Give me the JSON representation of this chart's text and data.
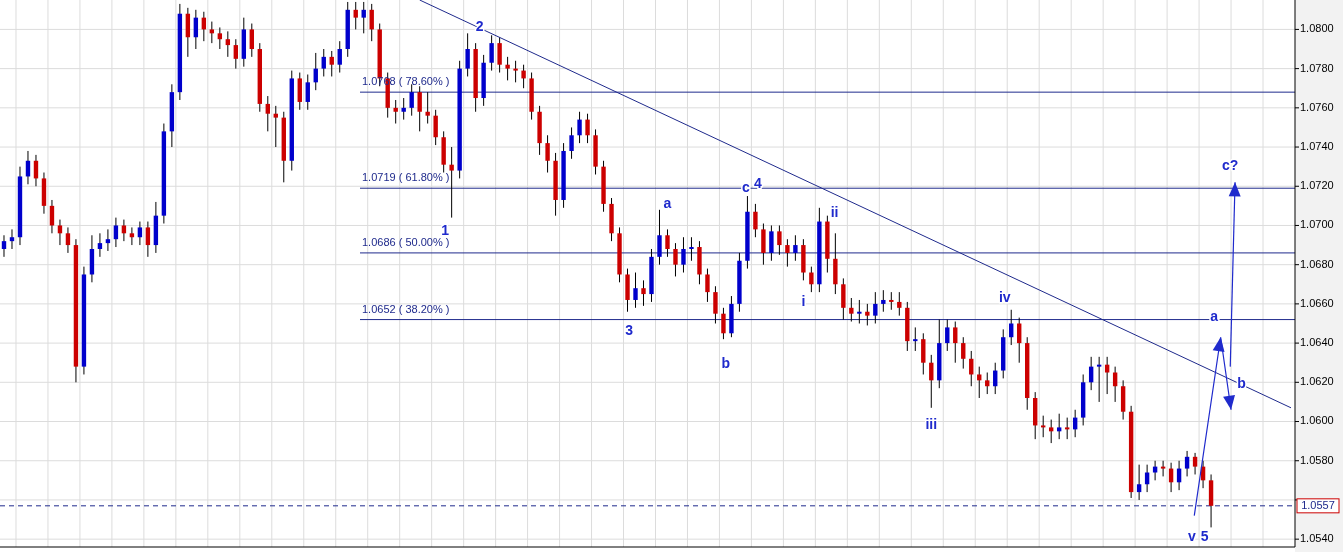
{
  "chart_data": {
    "type": "candlestick",
    "categories": [
      null,
      null,
      null,
      null,
      null,
      null,
      null,
      null,
      null,
      null,
      null,
      null,
      null,
      null,
      null,
      null,
      null,
      null,
      null,
      null,
      null,
      null,
      null,
      null,
      null,
      null,
      null,
      null,
      null,
      null,
      null,
      null,
      null,
      null,
      null,
      null,
      null,
      null,
      null,
      null,
      null,
      null,
      null,
      null,
      null,
      null,
      null,
      null,
      null,
      null,
      null,
      null,
      null,
      null,
      null,
      null,
      null,
      null,
      null,
      null,
      null,
      null,
      null,
      null,
      null,
      null,
      null,
      null,
      null,
      null,
      null,
      null,
      null,
      null,
      null,
      null,
      null,
      null,
      null,
      null,
      null,
      null,
      null,
      null,
      null,
      null,
      null,
      null,
      null,
      null,
      null,
      null,
      null,
      null,
      null,
      null,
      null,
      null,
      null,
      null,
      null,
      null,
      null,
      null,
      null,
      null,
      null,
      null,
      null,
      null,
      null,
      null,
      null,
      null,
      null,
      null,
      null,
      null,
      null,
      null,
      null,
      null,
      null,
      null,
      null,
      null,
      null,
      null,
      null,
      null,
      null,
      null,
      null,
      null,
      null,
      null,
      null,
      null,
      null,
      null,
      null,
      null,
      null,
      null,
      null,
      null,
      null,
      null,
      null,
      null,
      null,
      null,
      null,
      null,
      null,
      null,
      null,
      null,
      null,
      null,
      null,
      null
    ],
    "ohlc": [
      [
        1.0688,
        1.0695,
        1.0684,
        1.0692
      ],
      [
        1.0692,
        1.0698,
        1.0688,
        1.0694
      ],
      [
        1.0694,
        1.073,
        1.069,
        1.0725
      ],
      [
        1.0725,
        1.0738,
        1.0721,
        1.0733
      ],
      [
        1.0733,
        1.0736,
        1.072,
        1.0724
      ],
      [
        1.0724,
        1.0727,
        1.0706,
        1.071
      ],
      [
        1.071,
        1.0713,
        1.0696,
        1.07
      ],
      [
        1.07,
        1.0703,
        1.069,
        1.0696
      ],
      [
        1.0696,
        1.0699,
        1.0686,
        1.069
      ],
      [
        1.069,
        1.0693,
        1.062,
        1.0628
      ],
      [
        1.0628,
        1.0679,
        1.0624,
        1.0675
      ],
      [
        1.0675,
        1.0695,
        1.0671,
        1.0688
      ],
      [
        1.0688,
        1.0696,
        1.0684,
        1.0691
      ],
      [
        1.0691,
        1.0698,
        1.0687,
        1.0693
      ],
      [
        1.0693,
        1.0704,
        1.0689,
        1.07
      ],
      [
        1.07,
        1.0703,
        1.0692,
        1.0696
      ],
      [
        1.0696,
        1.0699,
        1.069,
        1.0694
      ],
      [
        1.0694,
        1.0702,
        1.069,
        1.0699
      ],
      [
        1.0699,
        1.0702,
        1.0684,
        1.069
      ],
      [
        1.069,
        1.0712,
        1.0686,
        1.0705
      ],
      [
        1.0705,
        1.0752,
        1.0701,
        1.0748
      ],
      [
        1.0748,
        1.0772,
        1.074,
        1.0768
      ],
      [
        1.0768,
        1.0813,
        1.0764,
        1.0808
      ],
      [
        1.0808,
        1.0811,
        1.0786,
        1.0796
      ],
      [
        1.0796,
        1.081,
        1.079,
        1.0806
      ],
      [
        1.0806,
        1.0809,
        1.0794,
        1.08
      ],
      [
        1.08,
        1.0804,
        1.0793,
        1.0798
      ],
      [
        1.0798,
        1.0801,
        1.079,
        1.0795
      ],
      [
        1.0795,
        1.0799,
        1.0786,
        1.0792
      ],
      [
        1.0792,
        1.0795,
        1.078,
        1.0785
      ],
      [
        1.0785,
        1.0806,
        1.0781,
        1.08
      ],
      [
        1.08,
        1.0803,
        1.0786,
        1.079
      ],
      [
        1.079,
        1.0793,
        1.0758,
        1.0762
      ],
      [
        1.0762,
        1.0766,
        1.0748,
        1.0757
      ],
      [
        1.0757,
        1.0761,
        1.074,
        1.0755
      ],
      [
        1.0755,
        1.0758,
        1.0722,
        1.0733
      ],
      [
        1.0733,
        1.0779,
        1.0728,
        1.0775
      ],
      [
        1.0775,
        1.0778,
        1.0759,
        1.0763
      ],
      [
        1.0763,
        1.0777,
        1.0759,
        1.0773
      ],
      [
        1.0773,
        1.0788,
        1.0769,
        1.078
      ],
      [
        1.078,
        1.079,
        1.0776,
        1.0786
      ],
      [
        1.0786,
        1.0789,
        1.0776,
        1.0782
      ],
      [
        1.0782,
        1.0794,
        1.0778,
        1.079
      ],
      [
        1.079,
        1.0814,
        1.0786,
        1.081
      ],
      [
        1.081,
        1.0814,
        1.08,
        1.0806
      ],
      [
        1.0806,
        1.0814,
        1.0798,
        1.081
      ],
      [
        1.081,
        1.0813,
        1.0794,
        1.08
      ],
      [
        1.08,
        1.0803,
        1.0771,
        1.0775
      ],
      [
        1.0775,
        1.0778,
        1.0755,
        1.076
      ],
      [
        1.076,
        1.0764,
        1.0752,
        1.0758
      ],
      [
        1.0758,
        1.0765,
        1.0754,
        1.076
      ],
      [
        1.076,
        1.0772,
        1.0756,
        1.0768
      ],
      [
        1.0768,
        1.0771,
        1.0748,
        1.0758
      ],
      [
        1.0758,
        1.0768,
        1.0752,
        1.0756
      ],
      [
        1.0756,
        1.0759,
        1.0741,
        1.0745
      ],
      [
        1.0745,
        1.0748,
        1.0727,
        1.0731
      ],
      [
        1.0731,
        1.074,
        1.0704,
        1.0728
      ],
      [
        1.0728,
        1.0784,
        1.0724,
        1.078
      ],
      [
        1.078,
        1.0798,
        1.0776,
        1.079
      ],
      [
        1.079,
        1.0793,
        1.0758,
        1.0765
      ],
      [
        1.0765,
        1.0787,
        1.0761,
        1.0783
      ],
      [
        1.0783,
        1.0797,
        1.0779,
        1.0793
      ],
      [
        1.0793,
        1.0796,
        1.0778,
        1.0782
      ],
      [
        1.0782,
        1.0786,
        1.0774,
        1.078
      ],
      [
        1.078,
        1.0784,
        1.0773,
        1.0779
      ],
      [
        1.0779,
        1.0782,
        1.077,
        1.0775
      ],
      [
        1.0775,
        1.0778,
        1.0754,
        1.0758
      ],
      [
        1.0758,
        1.0761,
        1.0736,
        1.0742
      ],
      [
        1.0742,
        1.0746,
        1.0727,
        1.0733
      ],
      [
        1.0733,
        1.0737,
        1.0705,
        1.0713
      ],
      [
        1.0713,
        1.0742,
        1.0709,
        1.0738
      ],
      [
        1.0738,
        1.075,
        1.0734,
        1.0746
      ],
      [
        1.0746,
        1.0758,
        1.0742,
        1.0754
      ],
      [
        1.0754,
        1.0757,
        1.0742,
        1.0746
      ],
      [
        1.0746,
        1.0749,
        1.0726,
        1.073
      ],
      [
        1.073,
        1.0733,
        1.0707,
        1.0711
      ],
      [
        1.0711,
        1.0714,
        1.0692,
        1.0696
      ],
      [
        1.0696,
        1.0699,
        1.0671,
        1.0675
      ],
      [
        1.0675,
        1.0678,
        1.0656,
        1.0662
      ],
      [
        1.0662,
        1.0676,
        1.0658,
        1.0668
      ],
      [
        1.0668,
        1.0672,
        1.0659,
        1.0665
      ],
      [
        1.0665,
        1.0688,
        1.0661,
        1.0684
      ],
      [
        1.0684,
        1.0708,
        1.068,
        1.0695
      ],
      [
        1.0695,
        1.0698,
        1.0684,
        1.0688
      ],
      [
        1.0688,
        1.0691,
        1.0674,
        1.068
      ],
      [
        1.068,
        1.0694,
        1.0676,
        1.0688
      ],
      [
        1.0688,
        1.0694,
        1.0682,
        1.0689
      ],
      [
        1.0689,
        1.0692,
        1.067,
        1.0675
      ],
      [
        1.0675,
        1.0678,
        1.0661,
        1.0666
      ],
      [
        1.0666,
        1.0669,
        1.065,
        1.0655
      ],
      [
        1.0655,
        1.0658,
        1.0642,
        1.0645
      ],
      [
        1.0645,
        1.0664,
        1.0643,
        1.066
      ],
      [
        1.066,
        1.0686,
        1.0656,
        1.0682
      ],
      [
        1.0682,
        1.0715,
        1.0678,
        1.0707
      ],
      [
        1.0707,
        1.0711,
        1.0694,
        1.0698
      ],
      [
        1.0698,
        1.0701,
        1.068,
        1.0686
      ],
      [
        1.0686,
        1.07,
        1.0682,
        1.0697
      ],
      [
        1.0697,
        1.07,
        1.0685,
        1.069
      ],
      [
        1.069,
        1.0693,
        1.0679,
        1.0686
      ],
      [
        1.0686,
        1.0695,
        1.0682,
        1.069
      ],
      [
        1.069,
        1.0693,
        1.0672,
        1.0676
      ],
      [
        1.0676,
        1.0679,
        1.0666,
        1.067
      ],
      [
        1.067,
        1.0709,
        1.0666,
        1.0702
      ],
      [
        1.0702,
        1.0705,
        1.0676,
        1.0683
      ],
      [
        1.0683,
        1.0696,
        1.0665,
        1.067
      ],
      [
        1.067,
        1.0673,
        1.0652,
        1.0658
      ],
      [
        1.0658,
        1.0663,
        1.0651,
        1.0655
      ],
      [
        1.0655,
        1.0662,
        1.065,
        1.0656
      ],
      [
        1.0656,
        1.066,
        1.0649,
        1.0654
      ],
      [
        1.0654,
        1.0666,
        1.065,
        1.066
      ],
      [
        1.066,
        1.0667,
        1.0656,
        1.0662
      ],
      [
        1.0662,
        1.0666,
        1.0657,
        1.0661
      ],
      [
        1.0661,
        1.0666,
        1.0654,
        1.0658
      ],
      [
        1.0658,
        1.0661,
        1.0636,
        1.0641
      ],
      [
        1.0641,
        1.0648,
        1.0636,
        1.0642
      ],
      [
        1.0642,
        1.0645,
        1.0624,
        1.063
      ],
      [
        1.063,
        1.0634,
        1.0607,
        1.0621
      ],
      [
        1.0621,
        1.0652,
        1.0617,
        1.064
      ],
      [
        1.064,
        1.0652,
        1.0636,
        1.0648
      ],
      [
        1.0648,
        1.0651,
        1.063,
        1.064
      ],
      [
        1.064,
        1.0643,
        1.0627,
        1.0632
      ],
      [
        1.0632,
        1.0636,
        1.0618,
        1.0624
      ],
      [
        1.0624,
        1.0628,
        1.0612,
        1.0621
      ],
      [
        1.0621,
        1.0625,
        1.0614,
        1.0618
      ],
      [
        1.0618,
        1.063,
        1.0614,
        1.0626
      ],
      [
        1.0626,
        1.0647,
        1.0622,
        1.0643
      ],
      [
        1.0643,
        1.0657,
        1.0639,
        1.065
      ],
      [
        1.065,
        1.0653,
        1.063,
        1.064
      ],
      [
        1.064,
        1.0643,
        1.0606,
        1.0612
      ],
      [
        1.0612,
        1.0615,
        1.0591,
        1.0598
      ],
      [
        1.0598,
        1.0603,
        1.0592,
        1.0597
      ],
      [
        1.0597,
        1.0601,
        1.0589,
        1.0595
      ],
      [
        1.0595,
        1.0604,
        1.0591,
        1.0597
      ],
      [
        1.0597,
        1.0602,
        1.0591,
        1.0596
      ],
      [
        1.0596,
        1.0606,
        1.0592,
        1.0602
      ],
      [
        1.0602,
        1.0624,
        1.0598,
        1.062
      ],
      [
        1.062,
        1.0633,
        1.0616,
        1.0628
      ],
      [
        1.0628,
        1.0633,
        1.061,
        1.0629
      ],
      [
        1.0629,
        1.0633,
        1.0614,
        1.0625
      ],
      [
        1.0625,
        1.0628,
        1.061,
        1.0618
      ],
      [
        1.0618,
        1.0621,
        1.0601,
        1.0605
      ],
      [
        1.0605,
        1.0608,
        1.0561,
        1.0564
      ],
      [
        1.0564,
        1.0578,
        1.056,
        1.0568
      ],
      [
        1.0568,
        1.0578,
        1.0564,
        1.0574
      ],
      [
        1.0574,
        1.058,
        1.057,
        1.0577
      ],
      [
        1.0577,
        1.058,
        1.0572,
        1.0576
      ],
      [
        1.0576,
        1.0579,
        1.0564,
        1.0569
      ],
      [
        1.0569,
        1.058,
        1.0565,
        1.0576
      ],
      [
        1.0576,
        1.0585,
        1.0572,
        1.0582
      ],
      [
        1.0582,
        1.0584,
        1.0573,
        1.0577
      ],
      [
        1.0577,
        1.058,
        1.0566,
        1.057
      ],
      [
        1.057,
        1.0573,
        1.0546,
        1.0557
      ],
      null,
      null,
      null,
      null,
      null,
      null,
      null,
      null,
      null,
      null
    ],
    "series": [
      {
        "type": "line",
        "color": "#1f2a8c",
        "values": [
          null,
          null,
          null,
          null,
          null,
          null,
          null,
          null,
          null,
          null,
          null,
          null,
          null,
          null,
          null,
          null,
          null,
          null,
          null,
          null,
          null,
          null,
          null,
          null,
          null,
          null,
          null,
          null,
          null,
          null,
          null,
          null,
          null,
          null,
          null,
          null,
          null,
          null,
          null,
          null,
          null,
          null,
          null,
          null,
          null,
          null,
          null,
          null,
          null,
          null,
          null,
          null,
          1.0815,
          null,
          null,
          null,
          null,
          null,
          null,
          null,
          null,
          null,
          null,
          null,
          null,
          null,
          null,
          null,
          null,
          null,
          null,
          null,
          null,
          null,
          null,
          null,
          null,
          null,
          null,
          null,
          null,
          null,
          null,
          null,
          null,
          null,
          null,
          null,
          null,
          null,
          null,
          null,
          null,
          null,
          null,
          null,
          null,
          null,
          null,
          null,
          null,
          null,
          null,
          null,
          null,
          null,
          null,
          null,
          null,
          null,
          null,
          null,
          null,
          null,
          null,
          null,
          null,
          null,
          null,
          null,
          null,
          null,
          null,
          null,
          null,
          null,
          null,
          null,
          null,
          null,
          null,
          null,
          null,
          null,
          null,
          null,
          null,
          null,
          null,
          null,
          null,
          null,
          null,
          null,
          null,
          null,
          null,
          null,
          null,
          null,
          null,
          null,
          null,
          null,
          null,
          null,
          null,
          null,
          null,
          null,
          null,
          1.0607
        ]
      }
    ],
    "ylim": [
      1.0536,
      1.0815
    ],
    "yticks": [
      {
        "value": 1.054,
        "label": "1.0540"
      },
      {
        "value": 1.056,
        "label": null
      },
      {
        "value": 1.058,
        "label": "1.0580"
      },
      {
        "value": 1.06,
        "label": "1.0600"
      },
      {
        "value": 1.062,
        "label": "1.0620"
      },
      {
        "value": 1.064,
        "label": "1.0640"
      },
      {
        "value": 1.066,
        "label": "1.0660"
      },
      {
        "value": 1.068,
        "label": "1.0680"
      },
      {
        "value": 1.07,
        "label": "1.0700"
      },
      {
        "value": 1.072,
        "label": "1.0720"
      },
      {
        "value": 1.074,
        "label": "1.0740"
      },
      {
        "value": 1.076,
        "label": "1.0760"
      },
      {
        "value": 1.078,
        "label": "1.0780"
      },
      {
        "value": 1.08,
        "label": "1.0800"
      }
    ],
    "grid": true,
    "ref_lines": [
      {
        "axis": "y",
        "value": 1.0768,
        "label": "1.0768 ( 78.60% )",
        "color": "#1f2a8c",
        "line_style": "solid"
      },
      {
        "axis": "y",
        "value": 1.0719,
        "label": "1.0719 ( 61.80% )",
        "color": "#1f2a8c",
        "line_style": "solid"
      },
      {
        "axis": "y",
        "value": 1.0686,
        "label": "1.0686 ( 50.00% )",
        "color": "#1f2a8c",
        "line_style": "solid"
      },
      {
        "axis": "y",
        "value": 1.0652,
        "label": "1.0652 ( 38.20% )",
        "color": "#1f2a8c",
        "line_style": "solid"
      },
      {
        "axis": "y",
        "value": 1.0557,
        "label": "1.0557",
        "color": "#1f2a8c",
        "line_style": "dashed"
      }
    ],
    "annotations": [
      "1",
      "2",
      "3",
      "a",
      "b",
      "c",
      "4",
      "i",
      "ii",
      "iii",
      "iv",
      "v",
      "5",
      "a",
      "b",
      "c?"
    ]
  }
}
